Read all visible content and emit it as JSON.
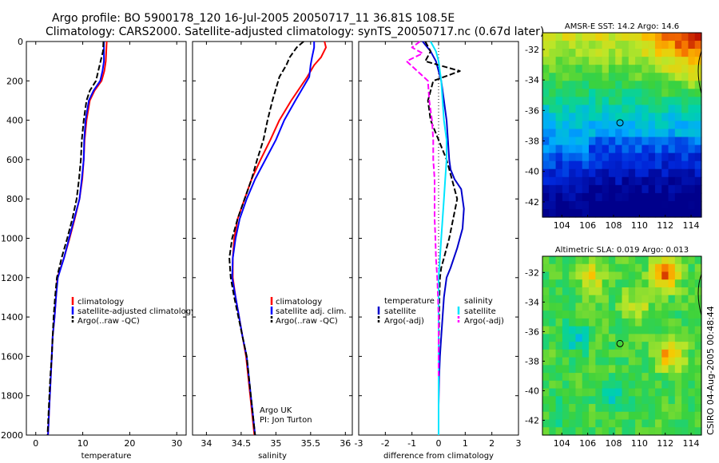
{
  "title": {
    "line1": "Argo profile: BO 5900178_120 16-Jul-2005 20050717_11 36.81S 108.5E",
    "line2": "Climatology: CARS2000. Satellite-adjusted climatology: synTS_20050717.nc (0.67d later)"
  },
  "colors": {
    "climatology": "#ff0000",
    "satellite": "#0000ff",
    "argo": "#000000",
    "sat_temp_diff": "#0000cc",
    "sat_sal_diff": "#00e5ff",
    "argo_sal_diff": "#ff00ff",
    "zero_line": "#000000"
  },
  "chart_data": [
    {
      "type": "line",
      "xlabel": "temperature",
      "ylabel": "",
      "xlim": [
        -2,
        32
      ],
      "ylim": [
        2000,
        0
      ],
      "xticks": [
        0,
        10,
        20,
        30
      ],
      "yticks": [
        0,
        200,
        400,
        600,
        800,
        1000,
        1200,
        1400,
        1600,
        1800,
        2000
      ],
      "legend_position": "lower-right",
      "series": [
        {
          "name": "climatology",
          "color": "#ff0000",
          "x": [
            15.1,
            15.0,
            14.9,
            14.6,
            14.0,
            12.5,
            11.5,
            10.8,
            10.4,
            10.2,
            9.9,
            9.3,
            8.3,
            7.2,
            6.0,
            4.6,
            4.3,
            4.0,
            3.6,
            3.4,
            3.2,
            2.9,
            2.6
          ],
          "y": [
            0,
            50,
            100,
            150,
            200,
            250,
            300,
            400,
            500,
            600,
            700,
            800,
            900,
            1000,
            1100,
            1200,
            1300,
            1400,
            1500,
            1600,
            1700,
            1850,
            2000
          ]
        },
        {
          "name": "satellite-adjusted climatology",
          "color": "#0000ff",
          "x": [
            14.5,
            14.5,
            14.5,
            14.2,
            13.7,
            12.3,
            11.3,
            10.6,
            10.3,
            10.2,
            9.8,
            9.3,
            8.2,
            7.1,
            6.0,
            4.7,
            4.3,
            4.0,
            3.6,
            3.4,
            3.2,
            2.9,
            2.6
          ],
          "y": [
            0,
            50,
            100,
            150,
            200,
            250,
            300,
            400,
            500,
            600,
            700,
            800,
            900,
            1000,
            1100,
            1200,
            1300,
            1400,
            1500,
            1600,
            1700,
            1850,
            2000
          ]
        },
        {
          "name": "Argo(..raw -QC)",
          "color": "#000000",
          "dash": "7,3",
          "x": [
            14.4,
            14.3,
            13.8,
            13.3,
            12.8,
            11.5,
            10.8,
            10.2,
            9.8,
            9.6,
            9.2,
            8.7,
            7.8,
            6.7,
            5.5,
            4.5,
            4.1,
            3.8,
            3.6,
            3.4,
            3.1,
            2.8,
            2.5
          ],
          "y": [
            0,
            50,
            100,
            150,
            200,
            250,
            300,
            400,
            500,
            600,
            700,
            800,
            900,
            1000,
            1100,
            1200,
            1300,
            1400,
            1500,
            1600,
            1700,
            1850,
            2000
          ]
        }
      ]
    },
    {
      "type": "line",
      "xlabel": "salinity",
      "ylabel": "",
      "xlim": [
        33.8,
        36.1
      ],
      "ylim": [
        2000,
        0
      ],
      "xticks": [
        34,
        34.5,
        35,
        35.5,
        36
      ],
      "legend_position": "lower-right",
      "annotation": {
        "line1": "Argo UK",
        "line2": "PI: Jon Turton"
      },
      "series": [
        {
          "name": "climatology",
          "color": "#ff0000",
          "x": [
            35.7,
            35.72,
            35.65,
            35.55,
            35.45,
            35.22,
            35.05,
            34.92,
            34.78,
            34.65,
            34.55,
            34.45,
            34.4,
            34.38,
            34.38,
            34.42,
            34.47,
            34.52,
            34.57,
            34.63,
            34.69
          ],
          "y": [
            0,
            30,
            80,
            120,
            180,
            300,
            400,
            500,
            600,
            700,
            800,
            900,
            1000,
            1100,
            1200,
            1300,
            1400,
            1500,
            1600,
            1800,
            2000
          ]
        },
        {
          "name": "satellite adj. clim.",
          "color": "#0000ff",
          "x": [
            35.55,
            35.55,
            35.52,
            35.5,
            35.48,
            35.28,
            35.12,
            35.0,
            34.85,
            34.7,
            34.58,
            34.48,
            34.42,
            34.38,
            34.37,
            34.42,
            34.47,
            34.52,
            34.58,
            34.64,
            34.7
          ],
          "y": [
            0,
            30,
            80,
            120,
            180,
            300,
            400,
            500,
            600,
            700,
            800,
            900,
            1000,
            1100,
            1200,
            1300,
            1400,
            1500,
            1600,
            1800,
            2000
          ]
        },
        {
          "name": "Argo(..raw -QC)",
          "color": "#000000",
          "dash": "7,3",
          "x": [
            35.4,
            35.3,
            35.2,
            35.15,
            35.05,
            34.95,
            34.88,
            34.82,
            34.73,
            34.65,
            34.55,
            34.45,
            34.37,
            34.33,
            34.35,
            34.4,
            34.46,
            34.52,
            34.58,
            34.64,
            34.7
          ],
          "y": [
            0,
            30,
            80,
            120,
            180,
            300,
            400,
            500,
            600,
            700,
            800,
            900,
            1000,
            1100,
            1200,
            1300,
            1400,
            1500,
            1600,
            1800,
            2000
          ]
        }
      ]
    },
    {
      "type": "line",
      "xlabel": "difference from climatology",
      "ylabel": "",
      "xlim": [
        -3,
        3
      ],
      "ylim": [
        2000,
        0
      ],
      "xticks": [
        -3,
        -2,
        -1,
        0,
        1,
        2,
        3
      ],
      "legend_left_title": "temperature",
      "legend_right_title": "salinity",
      "series": [
        {
          "name": "satellite",
          "group": "temperature",
          "color": "#0000cc",
          "x": [
            -0.6,
            -0.3,
            -0.1,
            0.1,
            0.2,
            0.3,
            0.35,
            0.4,
            0.45,
            0.6,
            0.85,
            0.95,
            0.9,
            0.7,
            0.45,
            0.3,
            0.2,
            0.15,
            0.1,
            0.05,
            0.02,
            0.0,
            0.0
          ],
          "y": [
            0,
            50,
            100,
            200,
            300,
            400,
            500,
            600,
            650,
            700,
            750,
            850,
            950,
            1050,
            1150,
            1200,
            1300,
            1400,
            1500,
            1600,
            1700,
            1850,
            2000
          ]
        },
        {
          "name": "Argo(-adj)",
          "group": "temperature",
          "color": "#000000",
          "dash": "7,3",
          "x": [
            -0.5,
            -0.3,
            -0.5,
            0.8,
            -0.2,
            -0.4,
            -0.3,
            0.0,
            0.3,
            0.5,
            0.7,
            0.55,
            0.4,
            0.2,
            0.1,
            0.05,
            0.03,
            0.02,
            0.01,
            0.0,
            0.0,
            0.0,
            0.0
          ],
          "y": [
            0,
            50,
            100,
            150,
            200,
            300,
            400,
            500,
            600,
            700,
            800,
            900,
            1000,
            1100,
            1150,
            1200,
            1300,
            1400,
            1500,
            1600,
            1700,
            1850,
            2000
          ]
        },
        {
          "name": "satellite",
          "group": "salinity",
          "color": "#00e5ff",
          "x": [
            -0.3,
            -0.1,
            0.0,
            0.1,
            0.15,
            0.2,
            0.3,
            0.3,
            0.25,
            0.2,
            0.15,
            0.1,
            0.05,
            0.0,
            0.0,
            0.0,
            0.0,
            0.0,
            0.0
          ],
          "y": [
            0,
            50,
            100,
            200,
            300,
            400,
            500,
            600,
            700,
            800,
            900,
            1000,
            1100,
            1200,
            1400,
            1500,
            1700,
            1850,
            2000
          ]
        },
        {
          "name": "Argo(-adj)",
          "group": "salinity",
          "color": "#ff00ff",
          "dash": "7,3",
          "x": [
            -0.7,
            -1.0,
            -0.6,
            -1.2,
            -0.4,
            -0.35,
            -0.25,
            -0.2,
            -0.2,
            -0.15,
            -0.15,
            -0.15,
            -0.12,
            -0.1,
            -0.05,
            -0.02,
            0.0,
            0.0,
            0.0
          ],
          "y": [
            0,
            30,
            60,
            100,
            200,
            300,
            400,
            500,
            600,
            700,
            800,
            900,
            1000,
            1100,
            1200,
            1300,
            1400,
            1500,
            1700
          ]
        }
      ]
    },
    {
      "type": "heatmap",
      "title": "AMSR-E SST: 14.2 Argo: 14.6",
      "xlim": [
        102.5,
        114.8
      ],
      "ylim": [
        -43.0,
        -30.9
      ],
      "xticks": [
        104,
        106,
        108,
        110,
        112,
        114
      ],
      "yticks": [
        -32,
        -34,
        -36,
        -38,
        -40,
        -42
      ],
      "marker": {
        "lon": 108.5,
        "lat": -36.81
      },
      "grid_description": "warm (red) NE corner, green/yellow band in middle, cold (blue) south"
    },
    {
      "type": "heatmap",
      "title": "Altimetric SLA: 0.019 Argo: 0.013",
      "xlim": [
        102.5,
        114.8
      ],
      "ylim": [
        -43.0,
        -30.9
      ],
      "xticks": [
        104,
        106,
        108,
        110,
        112,
        114
      ],
      "yticks": [
        -32,
        -34,
        -36,
        -38,
        -40,
        -42
      ],
      "marker": {
        "lon": 108.5,
        "lat": -36.81
      }
    }
  ],
  "sidelabel": "CSIRO 04-Aug-2005 00:48:44"
}
